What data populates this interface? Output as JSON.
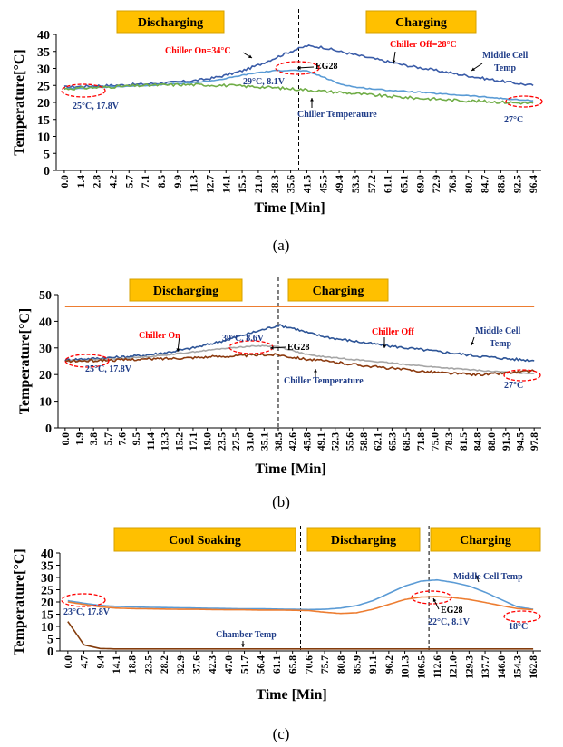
{
  "chart_data": [
    {
      "type": "line",
      "panel_label": "(a)",
      "xlabel": "Time [Min]",
      "ylabel": "Temperature[°C]",
      "ylim": [
        0,
        40
      ],
      "yticks": [
        0,
        5,
        10,
        15,
        20,
        25,
        30,
        35,
        40
      ],
      "xticks": [
        "0.0",
        "1.4",
        "2.8",
        "4.2",
        "5.7",
        "7.1",
        "8.5",
        "9.9",
        "11.3",
        "12.7",
        "14.1",
        "15.5",
        "21.0",
        "28.3",
        "35.6",
        "41.5",
        "45.5",
        "49.4",
        "53.3",
        "57.2",
        "61.1",
        "65.1",
        "69.0",
        "72.9",
        "76.8",
        "80.7",
        "84.7",
        "88.6",
        "92.5",
        "96.4"
      ],
      "phases": [
        {
          "label": "Discharging",
          "start": 0,
          "end": 15
        },
        {
          "label": "Charging",
          "start": 15,
          "end": 29
        }
      ],
      "divider_index": 15,
      "series": [
        {
          "name": "Middle Cell Temp",
          "color": "#3a5ca8",
          "noise": 0.35,
          "values": [
            24.5,
            24.7,
            24.9,
            25.0,
            25.2,
            25.4,
            25.7,
            26.0,
            26.4,
            27.0,
            28.0,
            29.3,
            31.0,
            33.0,
            35.0,
            36.6,
            36.2,
            35.0,
            34.0,
            33.0,
            32.0,
            31.0,
            30.2,
            29.4,
            28.6,
            27.8,
            27.0,
            26.3,
            25.6,
            25.0
          ]
        },
        {
          "name": "EG28",
          "color": "#5a9bd5",
          "noise": 0.15,
          "values": [
            24.0,
            24.2,
            24.4,
            24.6,
            24.8,
            25.0,
            25.2,
            25.5,
            25.8,
            26.3,
            27.0,
            28.0,
            28.8,
            29.3,
            29.5,
            29.2,
            27.5,
            25.5,
            24.5,
            24.0,
            23.6,
            23.3,
            23.0,
            22.6,
            22.3,
            22.0,
            21.6,
            21.2,
            20.8,
            20.5
          ]
        },
        {
          "name": "Chiller Temperature",
          "color": "#70ad47",
          "noise": 0.4,
          "values": [
            24.0,
            24.2,
            24.4,
            24.6,
            24.8,
            25.0,
            25.1,
            25.2,
            25.2,
            25.1,
            25.0,
            24.8,
            24.6,
            24.3,
            24.0,
            23.7,
            23.3,
            23.0,
            22.6,
            22.2,
            21.8,
            21.5,
            21.2,
            21.0,
            20.7,
            20.5,
            20.3,
            20.1,
            19.9,
            19.8
          ]
        }
      ],
      "annotations": [
        {
          "text": "Chiller On=34°C",
          "color": "#ff0000"
        },
        {
          "text": "Chiller Off=28°C",
          "color": "#ff0000"
        },
        {
          "text": "EG28",
          "color": "#000000"
        },
        {
          "text": "Middle Cell",
          "color": "#1f3c88"
        },
        {
          "text": "Temp",
          "color": "#1f3c88"
        },
        {
          "text": "29°C, 8.1V",
          "color": "#1f3c88"
        },
        {
          "text": "25°C, 17.8V",
          "color": "#1f3c88"
        },
        {
          "text": "Chiller Temperature",
          "color": "#1f3c88"
        },
        {
          "text": "27°C",
          "color": "#1f3c88"
        }
      ]
    },
    {
      "type": "line",
      "panel_label": "(b)",
      "xlabel": "Time [Min]",
      "ylabel": "Temperature[°C]",
      "ylim": [
        0,
        50
      ],
      "yticks": [
        0,
        10,
        20,
        30,
        40,
        50
      ],
      "xticks": [
        "0.0",
        "1.9",
        "3.8",
        "5.7",
        "7.6",
        "9.5",
        "11.4",
        "13.3",
        "15.2",
        "17.1",
        "19.0",
        "23.5",
        "27.5",
        "31.0",
        "35.1",
        "38.5",
        "42.6",
        "45.8",
        "49.1",
        "52.3",
        "55.6",
        "58.8",
        "62.1",
        "65.3",
        "68.5",
        "71.8",
        "75.0",
        "78.3",
        "81.5",
        "84.8",
        "88.0",
        "91.3",
        "94.5",
        "97.8"
      ],
      "phases": [
        {
          "label": "Discharging",
          "start": 0,
          "end": 15.5
        },
        {
          "label": "Charging",
          "start": 15.5,
          "end": 33
        }
      ],
      "divider_index": 15.5,
      "series": [
        {
          "name": "Middle Cell Temp",
          "color": "#2e5597",
          "noise": 0.45,
          "values": [
            25.5,
            25.8,
            26.0,
            26.3,
            26.6,
            27.0,
            27.5,
            28.2,
            29.0,
            30.0,
            31.2,
            32.5,
            34.0,
            35.5,
            37.0,
            38.5,
            37.5,
            35.8,
            34.5,
            33.5,
            32.8,
            32.0,
            31.3,
            30.6,
            30.0,
            29.4,
            28.8,
            28.2,
            27.6,
            27.0,
            26.5,
            26.0,
            25.6,
            25.2
          ]
        },
        {
          "name": "EG28",
          "color": "#a6a6a6",
          "noise": 0.2,
          "values": [
            25.0,
            25.2,
            25.5,
            25.8,
            26.0,
            26.4,
            26.8,
            27.3,
            27.9,
            28.5,
            29.1,
            29.7,
            30.2,
            30.6,
            30.8,
            30.5,
            29.0,
            27.5,
            26.8,
            26.3,
            25.8,
            25.3,
            24.8,
            24.3,
            23.8,
            23.3,
            22.8,
            22.4,
            22.0,
            21.6,
            21.2,
            20.9,
            20.6,
            20.4
          ]
        },
        {
          "name": "Chiller Temperature",
          "color": "#8b3a0f",
          "noise": 0.45,
          "values": [
            25.0,
            25.1,
            25.2,
            25.4,
            25.5,
            25.7,
            25.8,
            26.0,
            26.2,
            26.4,
            26.6,
            26.8,
            27.0,
            27.2,
            27.4,
            27.5,
            26.5,
            25.8,
            25.2,
            24.6,
            24.0,
            23.4,
            22.8,
            22.3,
            21.8,
            21.3,
            20.9,
            20.5,
            20.2,
            20.0,
            20.2,
            20.6,
            21.0,
            21.3
          ]
        },
        {
          "name": "",
          "color": "#ed7d31",
          "noise": 0.0,
          "values": [
            45.5,
            45.5,
            45.5,
            45.5,
            45.5,
            45.5,
            45.5,
            45.5,
            45.5,
            45.5,
            45.5,
            45.5,
            45.5,
            45.5,
            45.5,
            45.5,
            45.5,
            45.5,
            45.5,
            45.5,
            45.5,
            45.5,
            45.5,
            45.5,
            45.5,
            45.5,
            45.5,
            45.5,
            45.5,
            45.5,
            45.5,
            45.5,
            45.5,
            45.5
          ]
        }
      ],
      "annotations": [
        {
          "text": "Chiller On",
          "color": "#ff0000"
        },
        {
          "text": "Chiller Off",
          "color": "#ff0000"
        },
        {
          "text": "EG28",
          "color": "#000000"
        },
        {
          "text": "30°C, 8.6V",
          "color": "#1f3c88"
        },
        {
          "text": "Middle Cell",
          "color": "#1f3c88"
        },
        {
          "text": "Temp",
          "color": "#1f3c88"
        },
        {
          "text": "25°C, 17.8V",
          "color": "#1f3c88"
        },
        {
          "text": "Chiller Temperature",
          "color": "#1f3c88"
        },
        {
          "text": "27°C",
          "color": "#1f3c88"
        }
      ]
    },
    {
      "type": "line",
      "panel_label": "(c)",
      "xlabel": "Time [Min]",
      "ylabel": "Temperature[°C]",
      "ylim": [
        0,
        40
      ],
      "yticks": [
        0,
        5,
        10,
        15,
        20,
        25,
        30,
        35,
        40
      ],
      "xticks": [
        "0.0",
        "4.7",
        "9.4",
        "14.1",
        "18.8",
        "23.5",
        "28.2",
        "32.9",
        "37.6",
        "42.3",
        "47.0",
        "51.7",
        "56.4",
        "61.1",
        "65.8",
        "70.6",
        "75.7",
        "80.8",
        "85.9",
        "91.1",
        "96.2",
        "101.3",
        "106.5",
        "112.6",
        "121.0",
        "129.3",
        "137.7",
        "146.0",
        "154.3",
        "162.8"
      ],
      "phases": [
        {
          "label": "Cool Soaking",
          "start": 0,
          "end": 15
        },
        {
          "label": "Discharging",
          "start": 15,
          "end": 23
        },
        {
          "label": "Charging",
          "start": 23,
          "end": 29
        }
      ],
      "dividers": [
        15,
        23
      ],
      "series": [
        {
          "name": "Middle Cell Temp",
          "color": "#5b9bd5",
          "noise": 0.0,
          "values": [
            20.5,
            19.5,
            18.6,
            18.2,
            18.0,
            17.8,
            17.7,
            17.6,
            17.5,
            17.4,
            17.3,
            17.2,
            17.2,
            17.1,
            17.0,
            16.9,
            17.0,
            17.5,
            18.5,
            20.5,
            23.5,
            26.5,
            28.5,
            29.0,
            28.0,
            26.5,
            24.0,
            21.0,
            18.0,
            17.0
          ]
        },
        {
          "name": "EG28",
          "color": "#ed7d31",
          "noise": 0.0,
          "values": [
            20.0,
            19.0,
            18.0,
            17.5,
            17.3,
            17.2,
            17.1,
            17.0,
            17.0,
            16.9,
            16.8,
            16.8,
            16.7,
            16.7,
            16.6,
            16.5,
            15.8,
            15.3,
            15.6,
            17.0,
            19.0,
            21.0,
            22.0,
            22.2,
            21.8,
            21.0,
            19.8,
            18.5,
            17.3,
            16.8
          ]
        },
        {
          "name": "Chamber Temp",
          "color": "#843c0c",
          "noise": 0.0,
          "values": [
            12.0,
            2.5,
            1.0,
            0.8,
            0.8,
            0.8,
            0.8,
            0.8,
            0.8,
            0.8,
            0.8,
            0.8,
            0.8,
            0.8,
            0.8,
            0.8,
            0.8,
            0.8,
            0.8,
            0.8,
            0.8,
            0.8,
            0.8,
            0.8,
            0.8,
            0.8,
            0.8,
            0.8,
            0.8,
            0.8
          ]
        }
      ],
      "annotations": [
        {
          "text": "Middle Cell Temp",
          "color": "#1f3c88"
        },
        {
          "text": "EG28",
          "color": "#000000"
        },
        {
          "text": "23°C, 17.8V",
          "color": "#1f3c88"
        },
        {
          "text": "22°C, 8.1V",
          "color": "#1f3c88"
        },
        {
          "text": "Chamber Temp",
          "color": "#1f3c88"
        },
        {
          "text": "18°C",
          "color": "#1f3c88"
        }
      ]
    }
  ],
  "colors": {
    "phase_box": "#ffc000",
    "phase_box_border": "#d4a000",
    "ellipse": "#ff0000",
    "arrow": "#000000"
  }
}
